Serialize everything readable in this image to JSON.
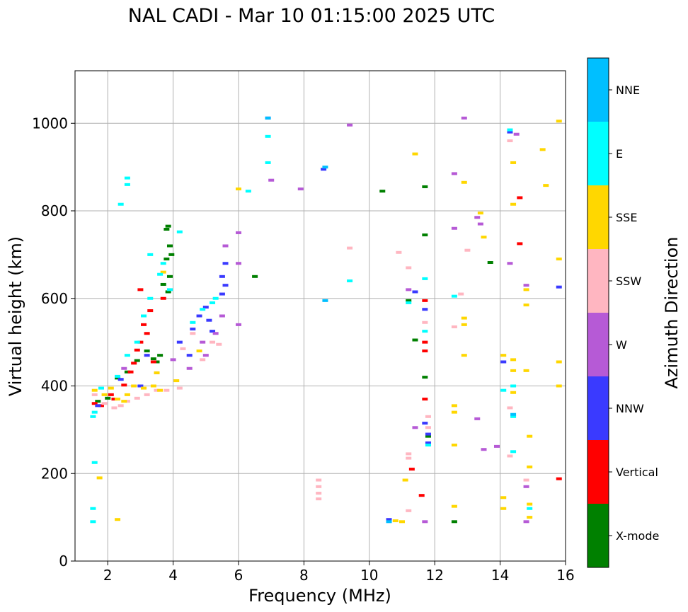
{
  "chart_data": {
    "type": "scatter",
    "title": "NAL CADI - Mar 10 01:15:00 2025 UTC",
    "xlabel": "Frequency (MHz)",
    "ylabel": "Virtual height (km)",
    "xlim": [
      1,
      16
    ],
    "ylim": [
      0,
      1120
    ],
    "xticks": [
      2,
      4,
      6,
      8,
      10,
      12,
      14,
      16
    ],
    "yticks": [
      0,
      200,
      400,
      600,
      800,
      1000
    ],
    "grid": true,
    "colorbar": {
      "label": "Azimuth Direction",
      "categories": [
        "X-mode",
        "Vertical",
        "NNW",
        "W",
        "SSW",
        "SSE",
        "E",
        "NNE"
      ],
      "colors": [
        "#008000",
        "#ff0000",
        "#3a3aff",
        "#b65ad6",
        "#ffb6c1",
        "#ffd700",
        "#00ffff",
        "#00bfff"
      ]
    },
    "series": [
      {
        "name": "X-mode",
        "points": [
          [
            1.7,
            365
          ],
          [
            2.0,
            372
          ],
          [
            2.3,
            418
          ],
          [
            2.6,
            432
          ],
          [
            2.9,
            458
          ],
          [
            3.2,
            480
          ],
          [
            3.4,
            462
          ],
          [
            3.5,
            455
          ],
          [
            3.6,
            470
          ],
          [
            3.7,
            632
          ],
          [
            3.8,
            758
          ],
          [
            3.85,
            765
          ],
          [
            3.9,
            720
          ],
          [
            3.95,
            700
          ],
          [
            3.8,
            690
          ],
          [
            3.9,
            650
          ],
          [
            3.85,
            615
          ],
          [
            6.5,
            650
          ],
          [
            10.4,
            845
          ],
          [
            11.2,
            595
          ],
          [
            11.4,
            505
          ],
          [
            11.7,
            745
          ],
          [
            11.7,
            855
          ],
          [
            11.7,
            420
          ],
          [
            11.8,
            285
          ],
          [
            12.6,
            90
          ],
          [
            13.7,
            682
          ]
        ]
      },
      {
        "name": "Vertical",
        "points": [
          [
            1.6,
            360
          ],
          [
            1.8,
            355
          ],
          [
            2.1,
            380
          ],
          [
            2.2,
            370
          ],
          [
            2.5,
            402
          ],
          [
            2.7,
            432
          ],
          [
            2.8,
            452
          ],
          [
            2.9,
            482
          ],
          [
            3.0,
            500
          ],
          [
            3.1,
            540
          ],
          [
            3.2,
            520
          ],
          [
            3.3,
            572
          ],
          [
            3.0,
            620
          ],
          [
            3.7,
            600
          ],
          [
            3.4,
            455
          ],
          [
            11.7,
            595
          ],
          [
            11.7,
            370
          ],
          [
            11.7,
            500
          ],
          [
            11.7,
            480
          ],
          [
            11.6,
            150
          ],
          [
            11.3,
            210
          ],
          [
            14.6,
            830
          ],
          [
            14.6,
            725
          ],
          [
            15.8,
            188
          ]
        ]
      },
      {
        "name": "NNW",
        "points": [
          [
            1.7,
            355
          ],
          [
            2.4,
            415
          ],
          [
            3.0,
            400
          ],
          [
            3.2,
            470
          ],
          [
            4.2,
            500
          ],
          [
            4.5,
            470
          ],
          [
            4.6,
            530
          ],
          [
            4.8,
            560
          ],
          [
            5.0,
            580
          ],
          [
            5.1,
            550
          ],
          [
            5.2,
            525
          ],
          [
            5.5,
            610
          ],
          [
            5.6,
            680
          ],
          [
            5.5,
            650
          ],
          [
            5.6,
            630
          ],
          [
            6.9,
            1012
          ],
          [
            8.6,
            895
          ],
          [
            11.4,
            615
          ],
          [
            11.7,
            575
          ],
          [
            11.7,
            315
          ],
          [
            11.8,
            290
          ],
          [
            11.8,
            270
          ],
          [
            10.6,
            95
          ],
          [
            14.1,
            455
          ],
          [
            14.3,
            980
          ],
          [
            15.8,
            626
          ]
        ]
      },
      {
        "name": "W",
        "points": [
          [
            2.5,
            440
          ],
          [
            3.5,
            430
          ],
          [
            4.0,
            460
          ],
          [
            4.5,
            440
          ],
          [
            4.9,
            500
          ],
          [
            5.0,
            470
          ],
          [
            5.3,
            520
          ],
          [
            5.5,
            560
          ],
          [
            5.6,
            720
          ],
          [
            6.0,
            750
          ],
          [
            6.0,
            680
          ],
          [
            6.0,
            540
          ],
          [
            7.0,
            870
          ],
          [
            7.9,
            850
          ],
          [
            9.4,
            996
          ],
          [
            11.2,
            620
          ],
          [
            11.4,
            305
          ],
          [
            11.7,
            90
          ],
          [
            12.6,
            885
          ],
          [
            12.6,
            760
          ],
          [
            12.9,
            1012
          ],
          [
            13.3,
            785
          ],
          [
            13.4,
            770
          ],
          [
            13.5,
            255
          ],
          [
            13.3,
            325
          ],
          [
            13.9,
            262
          ],
          [
            14.3,
            680
          ],
          [
            14.5,
            975
          ],
          [
            14.8,
            630
          ],
          [
            14.8,
            170
          ],
          [
            14.8,
            90
          ]
        ]
      },
      {
        "name": "SSW",
        "points": [
          [
            1.6,
            380
          ],
          [
            1.9,
            360
          ],
          [
            2.2,
            350
          ],
          [
            2.4,
            355
          ],
          [
            2.6,
            365
          ],
          [
            2.9,
            372
          ],
          [
            3.2,
            380
          ],
          [
            3.5,
            390
          ],
          [
            3.8,
            390
          ],
          [
            4.2,
            395
          ],
          [
            4.3,
            485
          ],
          [
            4.6,
            520
          ],
          [
            4.9,
            460
          ],
          [
            5.2,
            500
          ],
          [
            5.4,
            495
          ],
          [
            8.45,
            185
          ],
          [
            8.45,
            170
          ],
          [
            8.45,
            155
          ],
          [
            8.45,
            142
          ],
          [
            9.4,
            715
          ],
          [
            10.9,
            705
          ],
          [
            11.2,
            670
          ],
          [
            11.2,
            245
          ],
          [
            11.2,
            235
          ],
          [
            11.2,
            115
          ],
          [
            11.7,
            545
          ],
          [
            11.8,
            330
          ],
          [
            11.8,
            305
          ],
          [
            12.6,
            535
          ],
          [
            12.8,
            610
          ],
          [
            13.0,
            710
          ],
          [
            14.3,
            960
          ],
          [
            14.3,
            350
          ],
          [
            14.3,
            240
          ],
          [
            14.8,
            185
          ]
        ]
      },
      {
        "name": "SSE",
        "points": [
          [
            1.6,
            390
          ],
          [
            1.9,
            380
          ],
          [
            2.1,
            395
          ],
          [
            2.3,
            370
          ],
          [
            2.6,
            380
          ],
          [
            2.8,
            400
          ],
          [
            3.1,
            395
          ],
          [
            3.4,
            400
          ],
          [
            3.6,
            390
          ],
          [
            2.5,
            365
          ],
          [
            3.5,
            430
          ],
          [
            3.7,
            660
          ],
          [
            4.1,
            412
          ],
          [
            4.8,
            480
          ],
          [
            2.3,
            95
          ],
          [
            1.75,
            190
          ],
          [
            6.0,
            850
          ],
          [
            10.8,
            92
          ],
          [
            11.0,
            90
          ],
          [
            11.1,
            185
          ],
          [
            11.4,
            930
          ],
          [
            12.6,
            355
          ],
          [
            12.6,
            340
          ],
          [
            12.6,
            265
          ],
          [
            12.6,
            125
          ],
          [
            12.9,
            865
          ],
          [
            12.9,
            555
          ],
          [
            12.9,
            540
          ],
          [
            12.9,
            470
          ],
          [
            13.4,
            795
          ],
          [
            13.5,
            740
          ],
          [
            14.1,
            470
          ],
          [
            14.1,
            145
          ],
          [
            14.1,
            120
          ],
          [
            14.4,
            910
          ],
          [
            14.4,
            815
          ],
          [
            14.4,
            460
          ],
          [
            14.4,
            435
          ],
          [
            14.4,
            385
          ],
          [
            14.8,
            620
          ],
          [
            14.8,
            585
          ],
          [
            14.8,
            435
          ],
          [
            14.9,
            285
          ],
          [
            14.9,
            215
          ],
          [
            14.9,
            130
          ],
          [
            14.9,
            100
          ],
          [
            15.3,
            940
          ],
          [
            15.4,
            858
          ],
          [
            15.8,
            1005
          ],
          [
            15.8,
            690
          ],
          [
            15.8,
            455
          ],
          [
            15.8,
            400
          ]
        ]
      },
      {
        "name": "E",
        "points": [
          [
            1.55,
            330
          ],
          [
            1.6,
            340
          ],
          [
            1.8,
            395
          ],
          [
            2.3,
            422
          ],
          [
            2.6,
            470
          ],
          [
            2.9,
            500
          ],
          [
            3.1,
            560
          ],
          [
            3.3,
            600
          ],
          [
            3.6,
            655
          ],
          [
            3.7,
            680
          ],
          [
            3.9,
            620
          ],
          [
            4.2,
            752
          ],
          [
            4.6,
            545
          ],
          [
            4.9,
            575
          ],
          [
            5.2,
            590
          ],
          [
            5.3,
            600
          ],
          [
            2.4,
            815
          ],
          [
            2.6,
            860
          ],
          [
            2.6,
            875
          ],
          [
            3.3,
            700
          ],
          [
            1.55,
            120
          ],
          [
            1.55,
            90
          ],
          [
            1.6,
            225
          ],
          [
            6.3,
            845
          ],
          [
            6.9,
            970
          ],
          [
            6.9,
            910
          ],
          [
            9.4,
            640
          ],
          [
            11.2,
            590
          ],
          [
            11.7,
            525
          ],
          [
            11.7,
            645
          ],
          [
            11.8,
            265
          ],
          [
            12.6,
            605
          ],
          [
            14.1,
            390
          ],
          [
            14.4,
            400
          ],
          [
            14.4,
            330
          ],
          [
            14.4,
            250
          ],
          [
            14.9,
            120
          ],
          [
            14.3,
            985
          ]
        ]
      },
      {
        "name": "NNE",
        "points": [
          [
            6.9,
            1012
          ],
          [
            8.65,
            900
          ],
          [
            8.65,
            595
          ],
          [
            10.6,
            90
          ],
          [
            14.4,
            335
          ]
        ]
      }
    ]
  }
}
